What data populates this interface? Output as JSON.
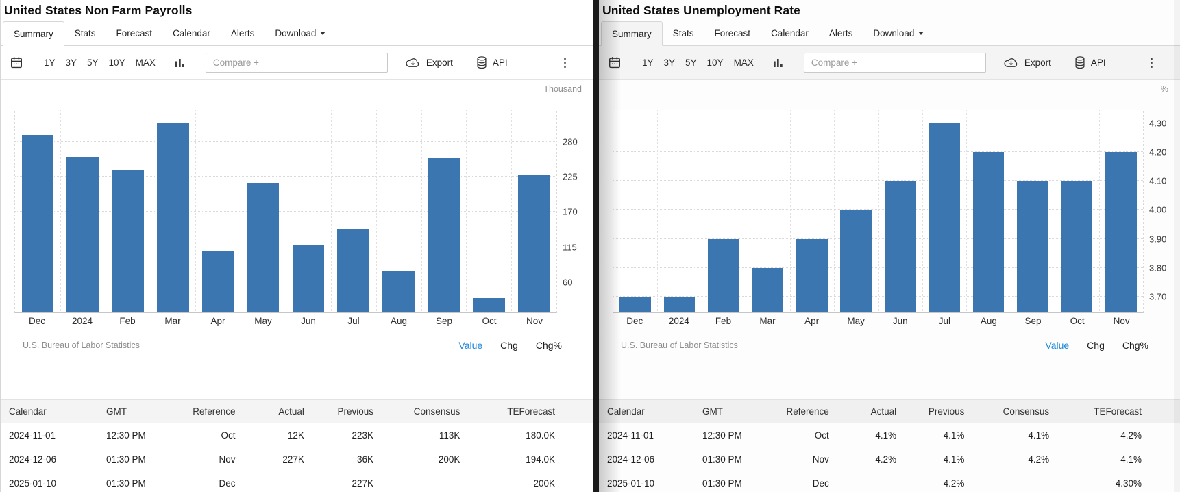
{
  "colors": {
    "bar_blue": "#3b76b0",
    "active_link_blue": "#1b87d9",
    "divider_dark": "#1a1a1a"
  },
  "panels": [
    {
      "title": "United States Non Farm Payrolls",
      "tabs": [
        "Summary",
        "Stats",
        "Forecast",
        "Calendar",
        "Alerts",
        "Download"
      ],
      "active_tab": "Summary",
      "toolbar": {
        "ranges": [
          "1Y",
          "3Y",
          "5Y",
          "10Y",
          "MAX"
        ],
        "compare_placeholder": "Compare +",
        "export_label": "Export",
        "api_label": "API",
        "kebab_icon": "⋮"
      },
      "chart_data": {
        "type": "bar",
        "title": "United States Non Farm Payrolls",
        "unit": "Thousand",
        "categories": [
          "Dec",
          "2024",
          "Feb",
          "Mar",
          "Apr",
          "May",
          "Jun",
          "Jul",
          "Aug",
          "Sep",
          "Oct",
          "Nov"
        ],
        "values": [
          290,
          256,
          236,
          310,
          108,
          216,
          118,
          144,
          78,
          255,
          36,
          227
        ],
        "ytick_labels": [
          "280",
          "225",
          "170",
          "115",
          "60"
        ],
        "ylim": [
          13,
          329
        ],
        "grid": true,
        "legend_position": "none",
        "bar_color": "#3b76b0"
      },
      "source": "U.S. Bureau of Labor Statistics",
      "series_toggles": [
        {
          "label": "Value",
          "active": true
        },
        {
          "label": "Chg",
          "active": false
        },
        {
          "label": "Chg%",
          "active": false
        }
      ],
      "table": {
        "columns": [
          "Calendar",
          "GMT",
          "Reference",
          "Actual",
          "Previous",
          "Consensus",
          "TEForecast"
        ],
        "rows": [
          [
            "2024-11-01",
            "12:30 PM",
            "Oct",
            "12K",
            "223K",
            "113K",
            "180.0K"
          ],
          [
            "2024-12-06",
            "01:30 PM",
            "Nov",
            "227K",
            "36K",
            "200K",
            "194.0K"
          ],
          [
            "2025-01-10",
            "01:30 PM",
            "Dec",
            "",
            "227K",
            "",
            "200K"
          ]
        ]
      }
    },
    {
      "title": "United States Unemployment Rate",
      "tabs": [
        "Summary",
        "Stats",
        "Forecast",
        "Calendar",
        "Alerts",
        "Download"
      ],
      "active_tab": "Summary",
      "toolbar": {
        "ranges": [
          "1Y",
          "3Y",
          "5Y",
          "10Y",
          "MAX"
        ],
        "compare_placeholder": "Compare +",
        "export_label": "Export",
        "api_label": "API",
        "kebab_icon": "⋮"
      },
      "chart_data": {
        "type": "bar",
        "title": "United States Unemployment Rate",
        "unit": "%",
        "categories": [
          "Dec",
          "2024",
          "Feb",
          "Mar",
          "Apr",
          "May",
          "Jun",
          "Jul",
          "Aug",
          "Sep",
          "Oct",
          "Nov"
        ],
        "values": [
          3.7,
          3.7,
          3.9,
          3.8,
          3.9,
          4.0,
          4.1,
          4.3,
          4.2,
          4.1,
          4.1,
          4.2
        ],
        "ytick_labels": [
          "4.30",
          "4.20",
          "4.10",
          "4.00",
          "3.90",
          "3.80",
          "3.70"
        ],
        "ylim": [
          3.645,
          4.345
        ],
        "grid": true,
        "legend_position": "none",
        "bar_color": "#3b76b0"
      },
      "source": "U.S. Bureau of Labor Statistics",
      "series_toggles": [
        {
          "label": "Value",
          "active": true
        },
        {
          "label": "Chg",
          "active": false
        },
        {
          "label": "Chg%",
          "active": false
        }
      ],
      "table": {
        "columns": [
          "Calendar",
          "GMT",
          "Reference",
          "Actual",
          "Previous",
          "Consensus",
          "TEForecast"
        ],
        "rows": [
          [
            "2024-11-01",
            "12:30 PM",
            "Oct",
            "4.1%",
            "4.1%",
            "4.1%",
            "4.2%"
          ],
          [
            "2024-12-06",
            "01:30 PM",
            "Nov",
            "4.2%",
            "4.1%",
            "4.2%",
            "4.1%"
          ],
          [
            "2025-01-10",
            "01:30 PM",
            "Dec",
            "",
            "4.2%",
            "",
            "4.30%"
          ]
        ]
      }
    }
  ]
}
